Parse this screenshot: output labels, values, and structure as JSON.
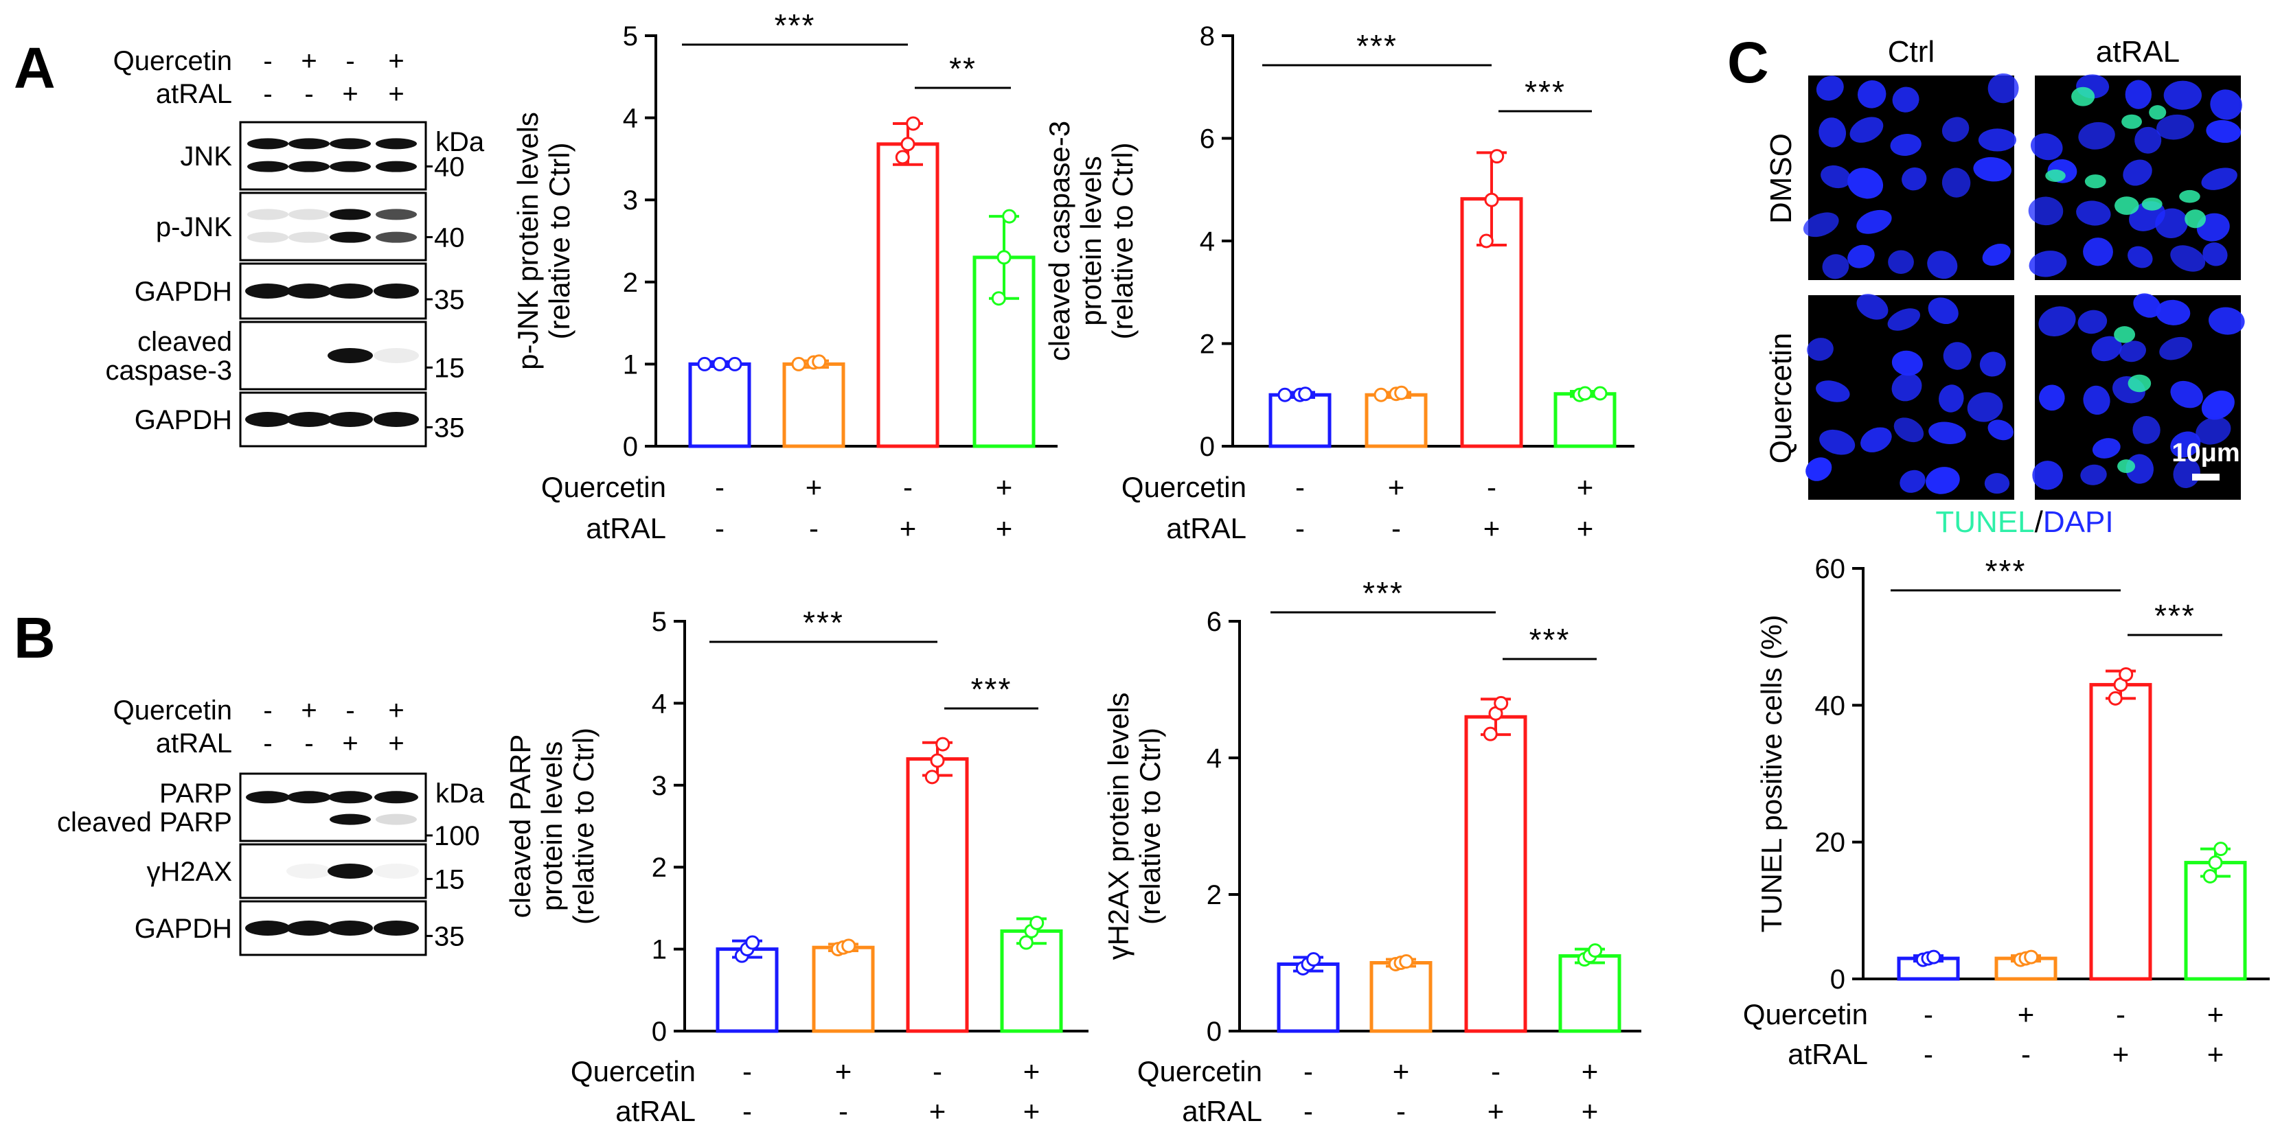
{
  "panels": {
    "A": "A",
    "B": "B",
    "C": "C"
  },
  "treatments": {
    "quercetin": "Quercetin",
    "atral": "atRAL"
  },
  "signs": {
    "quercetin": [
      "-",
      "+",
      "-",
      "+"
    ],
    "atral": [
      "-",
      "-",
      "+",
      "+"
    ]
  },
  "blot_A": {
    "kda": "kDa",
    "rows": [
      {
        "label": [
          "JNK"
        ],
        "marker": "40",
        "bands": [
          1,
          1,
          1,
          1
        ],
        "double": true,
        "kda": true
      },
      {
        "label": [
          "p-JNK"
        ],
        "marker": "40",
        "bands": [
          0.12,
          0.12,
          1,
          0.75
        ],
        "double": true
      },
      {
        "label": [
          "GAPDH"
        ],
        "marker": "35",
        "bands": [
          1,
          1,
          1,
          1
        ]
      },
      {
        "label": [
          "cleaved",
          "caspase-3"
        ],
        "marker": "15",
        "bands": [
          0,
          0,
          1,
          0.08
        ]
      },
      {
        "label": [
          "GAPDH"
        ],
        "marker": "35",
        "bands": [
          1,
          1,
          1,
          1
        ]
      }
    ]
  },
  "blot_B": {
    "kda": "kDa",
    "rows": [
      {
        "label": [
          "PARP",
          "cleaved PARP"
        ],
        "marker": "100",
        "bands": [
          1,
          1,
          1,
          1
        ],
        "cleaved": [
          0,
          0,
          1,
          0.15
        ],
        "kda": true
      },
      {
        "label": [
          "γH2AX"
        ],
        "marker": "15",
        "bands": [
          0,
          0.05,
          1,
          0.05
        ]
      },
      {
        "label": [
          "GAPDH"
        ],
        "marker": "35",
        "bands": [
          1,
          1,
          1,
          1
        ]
      }
    ]
  },
  "imaging": {
    "columns": [
      "Ctrl",
      "atRAL"
    ],
    "rows": [
      "DMSO",
      "Quercetin"
    ],
    "stain_tunel": "TUNEL",
    "stain_sep": "/",
    "stain_dapi": "DAPI",
    "scale_bar": "10μm",
    "colors": {
      "dapi": "#1f2bff",
      "tunel": "#2ef0a8"
    }
  },
  "chart_data": [
    {
      "type": "bar",
      "id": "pjnk",
      "ylabel": [
        "p-JNK protein levels",
        "(relative to Ctrl)"
      ],
      "ylim": [
        0,
        5
      ],
      "yticks": [
        0,
        1,
        2,
        3,
        4,
        5
      ],
      "categories": [
        "Ctrl",
        "Quercetin",
        "atRAL",
        "Quercetin+atRAL"
      ],
      "values": [
        1.0,
        1.0,
        3.68,
        2.3
      ],
      "errors": [
        0.03,
        0.04,
        0.25,
        0.5
      ],
      "points": [
        [
          1,
          1,
          1
        ],
        [
          1,
          1.02,
          1.03
        ],
        [
          3.52,
          3.68,
          3.93
        ],
        [
          1.8,
          2.3,
          2.8
        ]
      ],
      "colors": [
        "#1a1aff",
        "#ff8c1a",
        "#ff1a1a",
        "#1aff1a"
      ],
      "significance": [
        {
          "from": 0,
          "to": 2,
          "label": "***"
        },
        {
          "from": 2,
          "to": 3,
          "label": "**"
        }
      ]
    },
    {
      "type": "bar",
      "id": "casp3",
      "ylabel": [
        "cleaved caspase-3",
        "protein levels",
        "(relative to Ctrl)"
      ],
      "ylim": [
        0,
        8
      ],
      "yticks": [
        0,
        2,
        4,
        6,
        8
      ],
      "categories": [
        "Ctrl",
        "Quercetin",
        "atRAL",
        "Quercetin+atRAL"
      ],
      "values": [
        1.0,
        1.0,
        4.82,
        1.02
      ],
      "errors": [
        0.05,
        0.05,
        0.9,
        0.05
      ],
      "points": [
        [
          1,
          1,
          1.02
        ],
        [
          1,
          1.02,
          1.04
        ],
        [
          4,
          4.8,
          5.65
        ],
        [
          1,
          1.03,
          1.03
        ]
      ],
      "colors": [
        "#1a1aff",
        "#ff8c1a",
        "#ff1a1a",
        "#1aff1a"
      ],
      "significance": [
        {
          "from": 0,
          "to": 2,
          "label": "***"
        },
        {
          "from": 2,
          "to": 3,
          "label": "***"
        }
      ]
    },
    {
      "type": "bar",
      "id": "parp",
      "ylabel": [
        "cleaved PARP",
        "protein levels",
        "(relative to Ctrl)"
      ],
      "ylim": [
        0,
        5
      ],
      "yticks": [
        0,
        1,
        2,
        3,
        4,
        5
      ],
      "categories": [
        "Ctrl",
        "Quercetin",
        "atRAL",
        "Quercetin+atRAL"
      ],
      "values": [
        1.0,
        1.02,
        3.32,
        1.22
      ],
      "errors": [
        0.1,
        0.04,
        0.2,
        0.15
      ],
      "points": [
        [
          0.92,
          1,
          1.08
        ],
        [
          1,
          1.02,
          1.04
        ],
        [
          3.1,
          3.3,
          3.5
        ],
        [
          1.08,
          1.22,
          1.32
        ]
      ],
      "colors": [
        "#1a1aff",
        "#ff8c1a",
        "#ff1a1a",
        "#1aff1a"
      ],
      "significance": [
        {
          "from": 0,
          "to": 2,
          "label": "***"
        },
        {
          "from": 2,
          "to": 3,
          "label": "***"
        }
      ]
    },
    {
      "type": "bar",
      "id": "h2ax",
      "ylabel": [
        "γH2AX protein levels",
        "(relative to Ctrl)"
      ],
      "ylim": [
        0,
        6
      ],
      "yticks": [
        0,
        2,
        4,
        6
      ],
      "categories": [
        "Ctrl",
        "Quercetin",
        "atRAL",
        "Quercetin+atRAL"
      ],
      "values": [
        0.98,
        1.0,
        4.6,
        1.1
      ],
      "errors": [
        0.1,
        0.05,
        0.26,
        0.1
      ],
      "points": [
        [
          0.92,
          0.98,
          1.05
        ],
        [
          0.98,
          1,
          1.02
        ],
        [
          4.35,
          4.65,
          4.8
        ],
        [
          1.05,
          1.1,
          1.18
        ]
      ],
      "colors": [
        "#1a1aff",
        "#ff8c1a",
        "#ff1a1a",
        "#1aff1a"
      ],
      "significance": [
        {
          "from": 0,
          "to": 2,
          "label": "***"
        },
        {
          "from": 2,
          "to": 3,
          "label": "***"
        }
      ]
    },
    {
      "type": "bar",
      "id": "tunel",
      "ylabel": [
        "TUNEL positive cells (%)"
      ],
      "ylim": [
        0,
        60
      ],
      "yticks": [
        0,
        20,
        40,
        60
      ],
      "categories": [
        "Ctrl",
        "Quercetin",
        "atRAL",
        "Quercetin+atRAL"
      ],
      "values": [
        3.0,
        3.0,
        43.0,
        17.0
      ],
      "errors": [
        0.4,
        0.4,
        2.0,
        2.0
      ],
      "points": [
        [
          2.8,
          3,
          3.2
        ],
        [
          2.8,
          3,
          3.2
        ],
        [
          41,
          43,
          44.5
        ],
        [
          15,
          17,
          19
        ]
      ],
      "colors": [
        "#1a1aff",
        "#ff8c1a",
        "#ff1a1a",
        "#1aff1a"
      ],
      "significance": [
        {
          "from": 0,
          "to": 2,
          "label": "***"
        },
        {
          "from": 2,
          "to": 3,
          "label": "***"
        }
      ]
    }
  ]
}
